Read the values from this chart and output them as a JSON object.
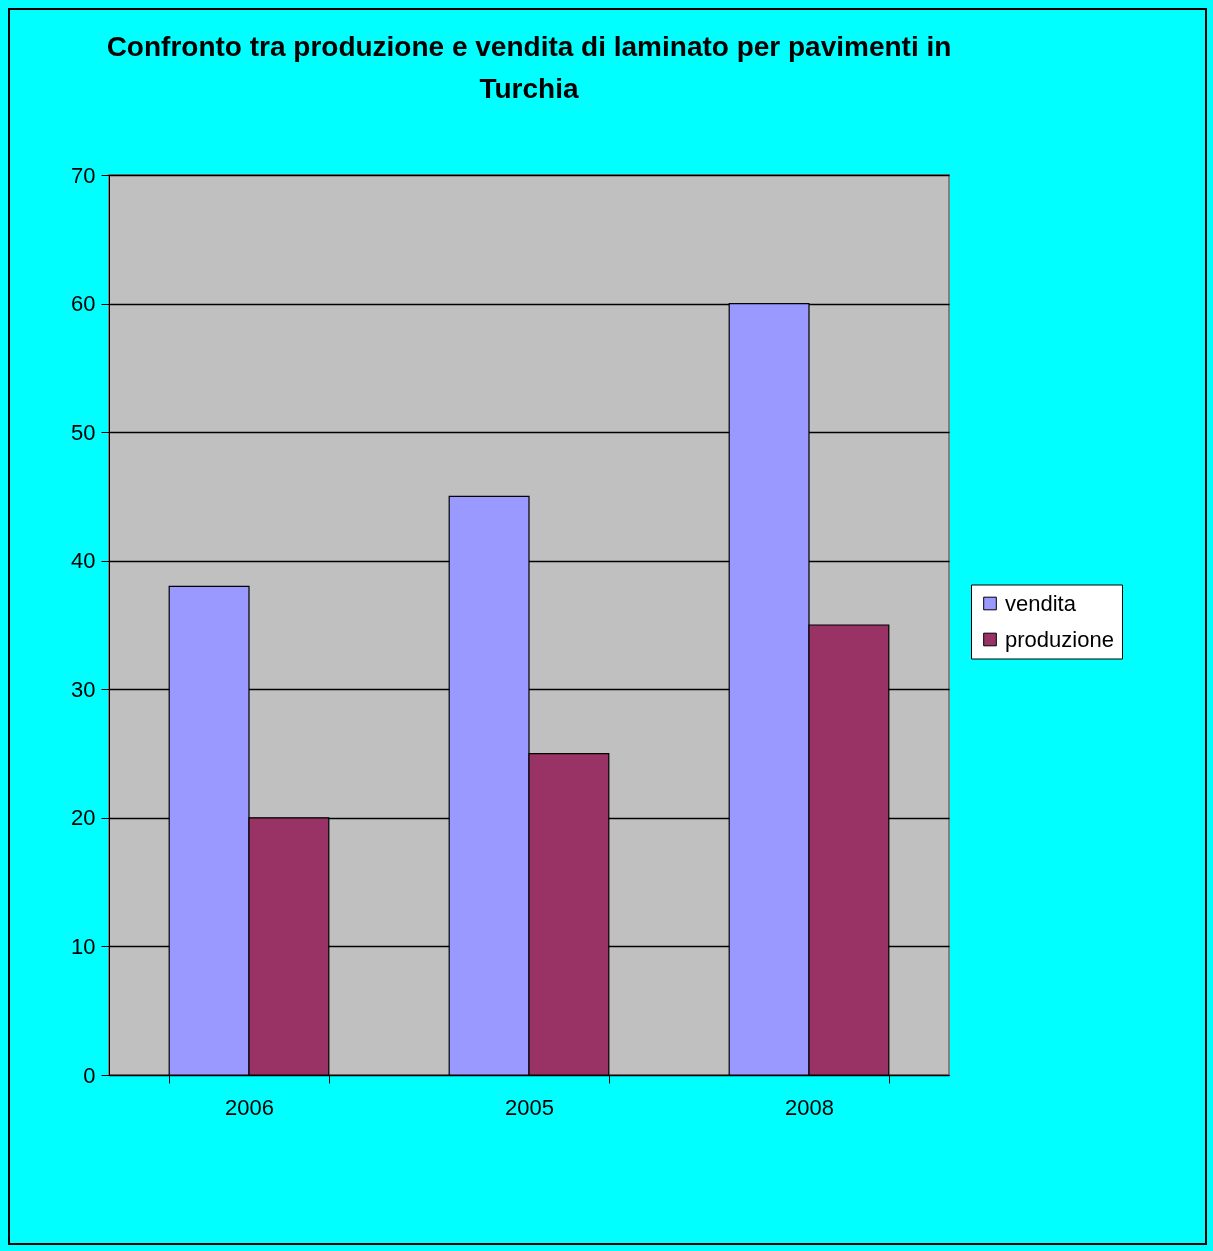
{
  "chart_data": {
    "type": "bar",
    "title": "Confronto tra produzione e vendita di laminato per pavimenti in Turchia",
    "categories": [
      "2006",
      "2005",
      "2008"
    ],
    "series": [
      {
        "name": "vendita",
        "color": "#9999ff",
        "values": [
          38,
          45,
          60
        ]
      },
      {
        "name": "produzione",
        "color": "#993366",
        "values": [
          20,
          25,
          35
        ]
      }
    ],
    "ylim": [
      0,
      70
    ],
    "yticks": [
      0,
      10,
      20,
      30,
      40,
      50,
      60,
      70
    ],
    "grid": "y",
    "legend": "right"
  }
}
